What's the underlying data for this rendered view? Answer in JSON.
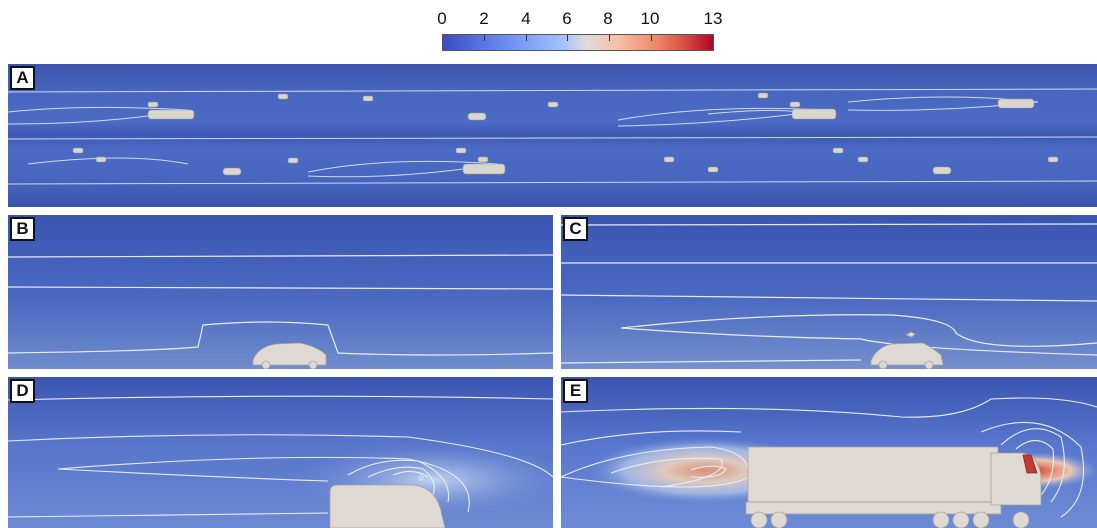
{
  "colorbar": {
    "tick_labels": [
      "0",
      "2",
      "4",
      "6",
      "8",
      "10",
      "13"
    ],
    "range": [
      0,
      13
    ],
    "colors": [
      "#3b4cc0",
      "#a5c3fe",
      "#dddcdc",
      "#f08b6e",
      "#b40426"
    ]
  },
  "panels": {
    "A": {
      "label": "A"
    },
    "B": {
      "label": "B"
    },
    "C": {
      "label": "C"
    },
    "D": {
      "label": "D"
    },
    "E": {
      "label": "E"
    }
  }
}
